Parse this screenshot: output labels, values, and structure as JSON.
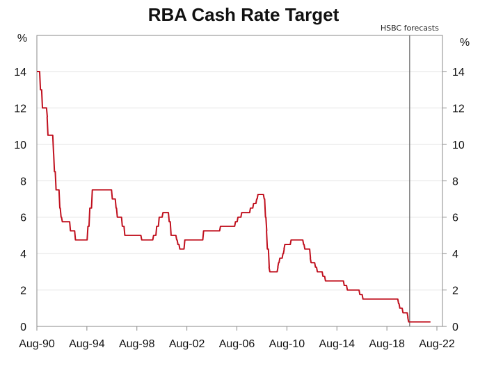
{
  "chart_data": {
    "type": "line",
    "title": "RBA Cash Rate Target",
    "ylabel_left": "%",
    "ylabel_right": "%",
    "ylim": [
      0,
      14
    ],
    "yticks": [
      0,
      2,
      4,
      6,
      8,
      10,
      12,
      14
    ],
    "xlim": [
      1990.58,
      2022.58
    ],
    "xticks": [
      {
        "label": "Aug-90",
        "x": 1990.58
      },
      {
        "label": "Aug-94",
        "x": 1994.58
      },
      {
        "label": "Aug-98",
        "x": 1998.58
      },
      {
        "label": "Aug-02",
        "x": 2002.58
      },
      {
        "label": "Aug-06",
        "x": 2006.58
      },
      {
        "label": "Aug-10",
        "x": 2010.58
      },
      {
        "label": "Aug-14",
        "x": 2014.58
      },
      {
        "label": "Aug-18",
        "x": 2018.58
      },
      {
        "label": "Aug-22",
        "x": 2022.58
      }
    ],
    "grid": "horizontal",
    "annotation": {
      "label": "HSBC forecasts",
      "x": 2020.4
    },
    "series": [
      {
        "name": "RBA cash rate target",
        "color": "#c0101e",
        "points": [
          [
            1990.58,
            14
          ],
          [
            1990.8,
            13
          ],
          [
            1990.96,
            12
          ],
          [
            1991.35,
            11.5
          ],
          [
            1991.4,
            10.5
          ],
          [
            1991.85,
            9.5
          ],
          [
            1991.92,
            8.5
          ],
          [
            1992.05,
            7.5
          ],
          [
            1992.35,
            6.5
          ],
          [
            1992.45,
            6
          ],
          [
            1992.55,
            5.75
          ],
          [
            1993.2,
            5.25
          ],
          [
            1993.6,
            4.75
          ],
          [
            1994.6,
            5.5
          ],
          [
            1994.75,
            6.5
          ],
          [
            1994.95,
            7.5
          ],
          [
            1996.55,
            7
          ],
          [
            1996.85,
            6.5
          ],
          [
            1996.95,
            6
          ],
          [
            1997.35,
            5.5
          ],
          [
            1997.55,
            5
          ],
          [
            1998.9,
            4.75
          ],
          [
            1999.85,
            5
          ],
          [
            2000.1,
            5.5
          ],
          [
            2000.3,
            6
          ],
          [
            2000.6,
            6.25
          ],
          [
            2001.1,
            5.75
          ],
          [
            2001.25,
            5
          ],
          [
            2001.7,
            4.75
          ],
          [
            2001.8,
            4.5
          ],
          [
            2001.95,
            4.25
          ],
          [
            2002.35,
            4.75
          ],
          [
            2003.85,
            5.25
          ],
          [
            2005.2,
            5.5
          ],
          [
            2006.4,
            5.75
          ],
          [
            2006.6,
            6
          ],
          [
            2006.9,
            6.25
          ],
          [
            2007.6,
            6.5
          ],
          [
            2007.85,
            6.75
          ],
          [
            2008.1,
            7
          ],
          [
            2008.2,
            7.25
          ],
          [
            2008.7,
            7
          ],
          [
            2008.8,
            6
          ],
          [
            2008.9,
            5.25
          ],
          [
            2008.95,
            4.25
          ],
          [
            2009.1,
            3.25
          ],
          [
            2009.15,
            3
          ],
          [
            2009.8,
            3.25
          ],
          [
            2009.85,
            3.5
          ],
          [
            2009.95,
            3.75
          ],
          [
            2010.2,
            4
          ],
          [
            2010.3,
            4.25
          ],
          [
            2010.35,
            4.5
          ],
          [
            2010.85,
            4.75
          ],
          [
            2011.85,
            4.5
          ],
          [
            2011.95,
            4.25
          ],
          [
            2012.4,
            3.75
          ],
          [
            2012.45,
            3.5
          ],
          [
            2012.8,
            3.25
          ],
          [
            2012.95,
            3
          ],
          [
            2013.4,
            2.75
          ],
          [
            2013.6,
            2.5
          ],
          [
            2015.1,
            2.25
          ],
          [
            2015.35,
            2
          ],
          [
            2016.35,
            1.75
          ],
          [
            2016.6,
            1.5
          ],
          [
            2019.45,
            1.25
          ],
          [
            2019.55,
            1
          ],
          [
            2019.8,
            0.75
          ],
          [
            2020.2,
            0.5
          ],
          [
            2020.25,
            0.25
          ],
          [
            2022.0,
            0.25
          ]
        ]
      }
    ]
  }
}
